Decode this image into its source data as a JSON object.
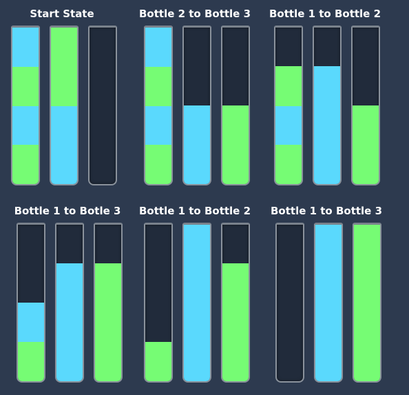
{
  "colors": {
    "background": "#2d3a4f",
    "bottle_empty": "#212b3b",
    "blue": "#5ad9fd",
    "green": "#76fc74"
  },
  "capacity": 4,
  "panels": [
    {
      "title": "Start State",
      "bottles": [
        [
          "green",
          "blue",
          "green",
          "blue"
        ],
        [
          "blue",
          "blue",
          "green",
          "green"
        ],
        []
      ]
    },
    {
      "title": "Bottle 2 to Bottle 3",
      "bottles": [
        [
          "green",
          "blue",
          "green",
          "blue"
        ],
        [
          "blue",
          "blue"
        ],
        [
          "green",
          "green"
        ]
      ]
    },
    {
      "title": "Bottle 1 to Bottle 2",
      "bottles": [
        [
          "green",
          "blue",
          "green"
        ],
        [
          "blue",
          "blue",
          "blue"
        ],
        [
          "green",
          "green"
        ]
      ]
    },
    {
      "title": "Bottle 1 to Botle 3",
      "bottles": [
        [
          "green",
          "blue"
        ],
        [
          "blue",
          "blue",
          "blue"
        ],
        [
          "green",
          "green",
          "green"
        ]
      ]
    },
    {
      "title": "Bottle 1 to Bottle 2",
      "bottles": [
        [
          "green"
        ],
        [
          "blue",
          "blue",
          "blue",
          "blue"
        ],
        [
          "green",
          "green",
          "green"
        ]
      ]
    },
    {
      "title": "Bottle 1 to Bottle 3",
      "bottles": [
        [],
        [
          "blue",
          "blue",
          "blue",
          "blue"
        ],
        [
          "green",
          "green",
          "green",
          "green"
        ]
      ]
    }
  ]
}
